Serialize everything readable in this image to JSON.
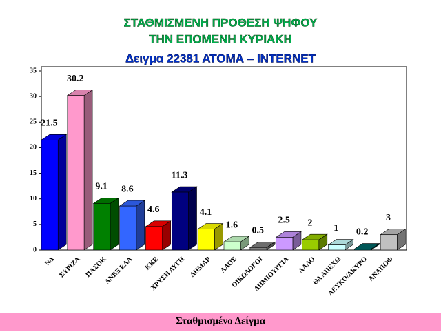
{
  "chart_data": {
    "type": "bar3d",
    "title": [
      "ΣΤΑΘΜΙΣΜΕΝΗ ΠΡΟΘΕΣΗ ΨΗΦΟΥ",
      "ΤΗΝ ΕΠΟΜΕΝΗ ΚΥΡΙΑΚΗ",
      "Δειγμα 22381   ΑΤΟΜΑ – INTERNET"
    ],
    "categories": [
      "ΝΔ",
      "ΣΥΡΙΖΑ",
      "ΠΑΣΟΚ",
      "ΑΝΕΞ ΕΛΛ",
      "ΚΚΕ",
      "ΧΡΥΣΗ ΑΥΓΗ",
      "ΔΗΜΑΡ",
      "ΛΑΟΣ",
      "ΟΙΚΟΛΟΓΟΙ",
      "ΔΗΜΙΟΥΡΓΙΑ",
      "ΑΛΛΟ",
      "ΘΑ ΑΠΕΧΩ",
      "ΛΕΥΚΟ/ΑΚΥΡΟ",
      "ΑΝΑΠΟΦ"
    ],
    "values": [
      21.5,
      30.2,
      9.1,
      8.6,
      4.6,
      11.3,
      4.1,
      1.6,
      0.5,
      2.5,
      2,
      1,
      0.2,
      3
    ],
    "colors": [
      "#0000ff",
      "#ff99cc",
      "#008000",
      "#3366ff",
      "#ff0000",
      "#000080",
      "#ffff00",
      "#ccffcc",
      "#808080",
      "#cc99ff",
      "#99cc00",
      "#ccffff",
      "#006666",
      "#c0c0c0"
    ],
    "ylim": [
      0,
      35
    ],
    "yticks": [
      0,
      5,
      10,
      15,
      20,
      25,
      30,
      35
    ],
    "footer": "Σταθμισμένο Δείγμα"
  }
}
